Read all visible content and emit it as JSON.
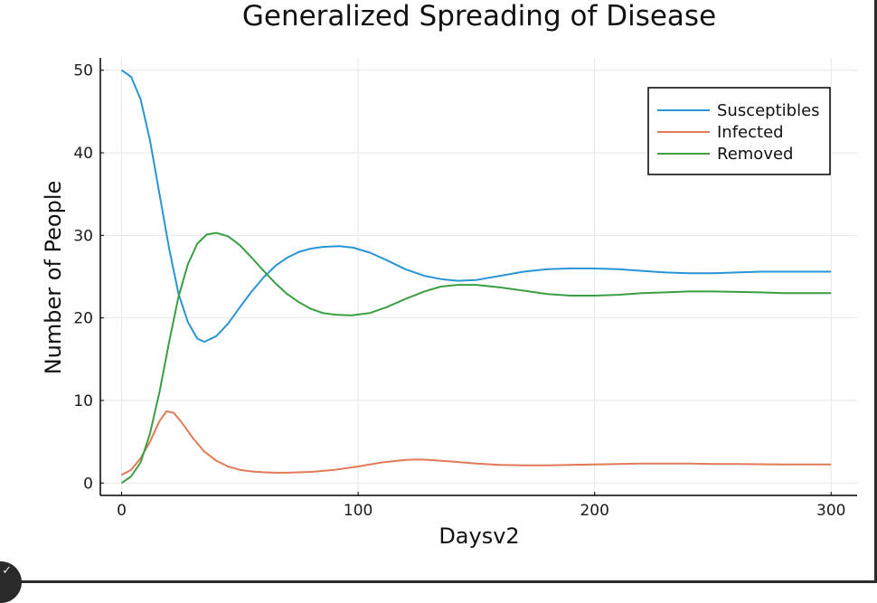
{
  "chart_data": {
    "type": "line",
    "title": "Generalized Spreading of Disease",
    "xlabel": "Daysv2",
    "ylabel": "Number of People",
    "xlim": [
      -9,
      311
    ],
    "ylim": [
      -1.5,
      51.5
    ],
    "xticks": [
      0,
      100,
      200,
      300
    ],
    "yticks": [
      0,
      10,
      20,
      30,
      40,
      50
    ],
    "grid": true,
    "legend_position": "top-right",
    "series": [
      {
        "name": "Susceptibles",
        "color": "#2a94d6",
        "points": [
          [
            0,
            50
          ],
          [
            4,
            49.2
          ],
          [
            8,
            46.5
          ],
          [
            12,
            41.5
          ],
          [
            16,
            35
          ],
          [
            20,
            28.5
          ],
          [
            24,
            23
          ],
          [
            28,
            19.5
          ],
          [
            32,
            17.5
          ],
          [
            35,
            17.1
          ],
          [
            40,
            17.8
          ],
          [
            45,
            19.3
          ],
          [
            50,
            21.3
          ],
          [
            55,
            23.2
          ],
          [
            60,
            24.9
          ],
          [
            65,
            26.3
          ],
          [
            70,
            27.3
          ],
          [
            75,
            28
          ],
          [
            80,
            28.4
          ],
          [
            85,
            28.6
          ],
          [
            92,
            28.7
          ],
          [
            98,
            28.5
          ],
          [
            105,
            27.9
          ],
          [
            112,
            27
          ],
          [
            120,
            25.9
          ],
          [
            128,
            25.1
          ],
          [
            135,
            24.7
          ],
          [
            142,
            24.5
          ],
          [
            150,
            24.6
          ],
          [
            160,
            25.1
          ],
          [
            170,
            25.6
          ],
          [
            180,
            25.9
          ],
          [
            190,
            26
          ],
          [
            198,
            26
          ],
          [
            210,
            25.9
          ],
          [
            220,
            25.7
          ],
          [
            230,
            25.5
          ],
          [
            240,
            25.4
          ],
          [
            250,
            25.4
          ],
          [
            260,
            25.5
          ],
          [
            270,
            25.6
          ],
          [
            280,
            25.6
          ],
          [
            290,
            25.6
          ],
          [
            300,
            25.6
          ]
        ]
      },
      {
        "name": "Infected",
        "color": "#e07a57",
        "points": [
          [
            0,
            1
          ],
          [
            4,
            1.6
          ],
          [
            8,
            3
          ],
          [
            12,
            5
          ],
          [
            16,
            7.5
          ],
          [
            19,
            8.7
          ],
          [
            22,
            8.5
          ],
          [
            25,
            7.5
          ],
          [
            30,
            5.5
          ],
          [
            35,
            3.8
          ],
          [
            40,
            2.7
          ],
          [
            45,
            2
          ],
          [
            50,
            1.6
          ],
          [
            55,
            1.4
          ],
          [
            60,
            1.3
          ],
          [
            65,
            1.25
          ],
          [
            70,
            1.25
          ],
          [
            80,
            1.35
          ],
          [
            90,
            1.6
          ],
          [
            100,
            2
          ],
          [
            110,
            2.5
          ],
          [
            120,
            2.8
          ],
          [
            125,
            2.85
          ],
          [
            130,
            2.8
          ],
          [
            140,
            2.6
          ],
          [
            150,
            2.35
          ],
          [
            160,
            2.2
          ],
          [
            170,
            2.15
          ],
          [
            180,
            2.15
          ],
          [
            190,
            2.2
          ],
          [
            200,
            2.25
          ],
          [
            210,
            2.3
          ],
          [
            220,
            2.35
          ],
          [
            230,
            2.35
          ],
          [
            240,
            2.35
          ],
          [
            250,
            2.3
          ],
          [
            260,
            2.3
          ],
          [
            270,
            2.28
          ],
          [
            280,
            2.25
          ],
          [
            290,
            2.25
          ],
          [
            300,
            2.25
          ]
        ]
      },
      {
        "name": "Removed",
        "color": "#3c9e44",
        "points": [
          [
            0,
            0
          ],
          [
            4,
            0.8
          ],
          [
            8,
            2.5
          ],
          [
            12,
            6
          ],
          [
            16,
            11
          ],
          [
            20,
            17
          ],
          [
            24,
            22.5
          ],
          [
            28,
            26.5
          ],
          [
            32,
            29
          ],
          [
            36,
            30.1
          ],
          [
            40,
            30.3
          ],
          [
            45,
            29.9
          ],
          [
            50,
            28.8
          ],
          [
            55,
            27.3
          ],
          [
            60,
            25.7
          ],
          [
            65,
            24.2
          ],
          [
            70,
            22.9
          ],
          [
            75,
            21.9
          ],
          [
            80,
            21.1
          ],
          [
            85,
            20.6
          ],
          [
            90,
            20.4
          ],
          [
            97,
            20.3
          ],
          [
            105,
            20.6
          ],
          [
            112,
            21.3
          ],
          [
            120,
            22.3
          ],
          [
            128,
            23.2
          ],
          [
            135,
            23.8
          ],
          [
            142,
            24
          ],
          [
            150,
            24
          ],
          [
            160,
            23.7
          ],
          [
            170,
            23.3
          ],
          [
            180,
            22.9
          ],
          [
            190,
            22.7
          ],
          [
            200,
            22.7
          ],
          [
            210,
            22.8
          ],
          [
            220,
            23
          ],
          [
            230,
            23.1
          ],
          [
            240,
            23.2
          ],
          [
            250,
            23.2
          ],
          [
            260,
            23.15
          ],
          [
            270,
            23.1
          ],
          [
            280,
            23
          ],
          [
            290,
            23
          ],
          [
            300,
            23
          ]
        ]
      }
    ]
  },
  "ui": {
    "corner_button_glyph": "✓"
  }
}
